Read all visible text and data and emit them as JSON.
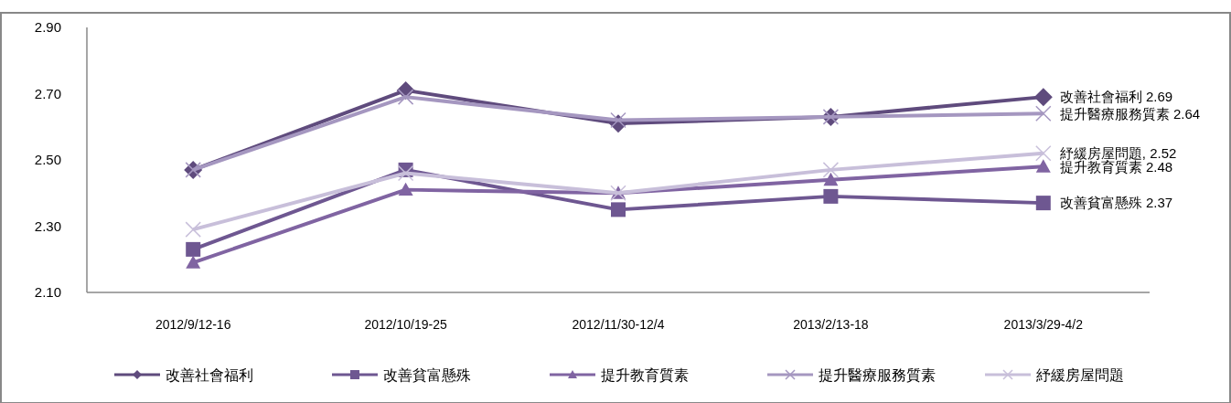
{
  "chart_data": {
    "type": "line",
    "categories": [
      "2012/9/12-16",
      "2012/10/19-25",
      "2012/11/30-12/4",
      "2013/2/13-18",
      "2013/3/29-4/2"
    ],
    "series": [
      {
        "name": "改善社會福利",
        "color": "#5f4b7d",
        "marker": "diamond",
        "values": [
          2.47,
          2.71,
          2.61,
          2.63,
          2.69
        ]
      },
      {
        "name": "改善貧富懸殊",
        "color": "#6e5791",
        "marker": "square",
        "values": [
          2.23,
          2.47,
          2.35,
          2.39,
          2.37
        ]
      },
      {
        "name": "提升教育質素",
        "color": "#8064a2",
        "marker": "triangle",
        "values": [
          2.19,
          2.41,
          2.4,
          2.44,
          2.48
        ]
      },
      {
        "name": "提升醫療服務質素",
        "color": "#a597c0",
        "marker": "cross",
        "values": [
          2.47,
          2.69,
          2.62,
          2.63,
          2.64
        ]
      },
      {
        "name": "紓緩房屋問題",
        "color": "#c8bfda",
        "marker": "cross",
        "values": [
          2.29,
          2.46,
          2.4,
          2.47,
          2.52
        ]
      }
    ],
    "annotations": [
      {
        "text": "改善社會福利 2.69",
        "x": "2013/3/29-4/2",
        "y": 2.69
      },
      {
        "text": "提升醫療服務質素 2.64",
        "x": "2013/3/29-4/2",
        "y": 2.64
      },
      {
        "text": "紓緩房屋問題, 2.52",
        "x": "2013/3/29-4/2",
        "y": 2.52
      },
      {
        "text": "提升教育質素 2.48",
        "x": "2013/3/29-4/2",
        "y": 2.48
      },
      {
        "text": "改善貧富懸殊 2.37",
        "x": "2013/3/29-4/2",
        "y": 2.37
      }
    ],
    "ylim": [
      2.1,
      2.9
    ],
    "yticks": [
      {
        "value": 2.1,
        "label": "2.10"
      },
      {
        "value": 2.3,
        "label": "2.30"
      },
      {
        "value": 2.5,
        "label": "2.50"
      },
      {
        "value": 2.7,
        "label": "2.70"
      },
      {
        "value": 2.9,
        "label": "2.90"
      }
    ],
    "grid": false,
    "legend": "bottom",
    "line_style": "solid"
  }
}
